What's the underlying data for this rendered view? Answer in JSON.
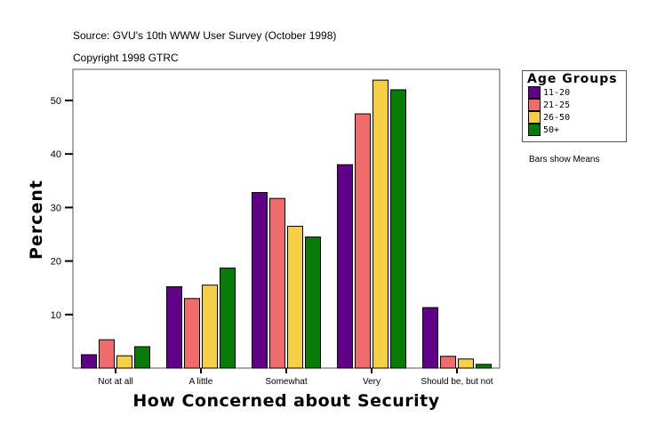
{
  "header": {
    "source": "Source: GVU's 10th WWW User Survey (October 1998)",
    "copyright": "Copyright 1998 GTRC"
  },
  "note": "Bars show Means",
  "chart_data": {
    "type": "bar",
    "xlabel": "How Concerned about Security",
    "ylabel": "Percent",
    "categories": [
      "Not at all",
      "A little",
      "Somewhat",
      "Very",
      "Should be, but not"
    ],
    "ylim": [
      0,
      56
    ],
    "yticks": [
      10,
      20,
      30,
      40,
      50
    ],
    "legend_title": "Age Groups",
    "legend_position": "right",
    "grid": false,
    "series": [
      {
        "name": "11-20",
        "color": "#5f0087",
        "values": [
          2.5,
          15.2,
          32.8,
          38.0,
          11.3
        ]
      },
      {
        "name": "21-25",
        "color": "#f06b6b",
        "values": [
          5.3,
          13.0,
          31.7,
          47.5,
          2.2
        ]
      },
      {
        "name": "26-50",
        "color": "#f5cf45",
        "values": [
          2.3,
          15.5,
          26.5,
          53.8,
          1.7
        ]
      },
      {
        "name": "50+",
        "color": "#087a08",
        "values": [
          4.0,
          18.7,
          24.5,
          52.0,
          0.7
        ]
      }
    ]
  }
}
